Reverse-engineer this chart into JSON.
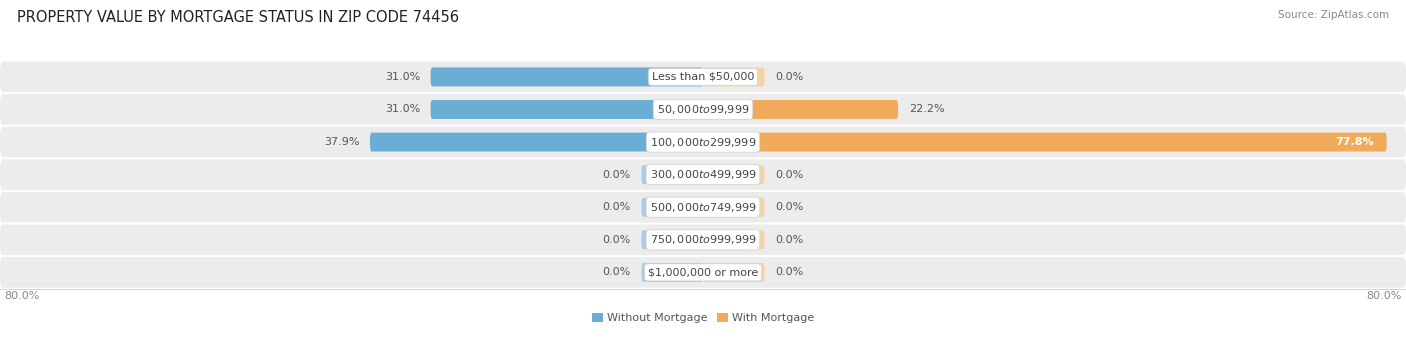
{
  "title": "PROPERTY VALUE BY MORTGAGE STATUS IN ZIP CODE 74456",
  "source": "Source: ZipAtlas.com",
  "categories": [
    "Less than $50,000",
    "$50,000 to $99,999",
    "$100,000 to $299,999",
    "$300,000 to $499,999",
    "$500,000 to $749,999",
    "$750,000 to $999,999",
    "$1,000,000 or more"
  ],
  "without_mortgage": [
    31.0,
    31.0,
    37.9,
    0.0,
    0.0,
    0.0,
    0.0
  ],
  "with_mortgage": [
    0.0,
    22.2,
    77.8,
    0.0,
    0.0,
    0.0,
    0.0
  ],
  "color_without": "#6aaed6",
  "color_with": "#f0aa5a",
  "color_without_zero": "#a8cce0",
  "color_with_zero": "#f5d3a8",
  "row_bg_color": "#ececec",
  "row_bg_alt": "#f5f5f5",
  "axis_left_label": "80.0%",
  "axis_right_label": "80.0%",
  "max_val": 80.0,
  "stub_size": 7.0,
  "legend_without": "Without Mortgage",
  "legend_with": "With Mortgage",
  "title_fontsize": 10.5,
  "source_fontsize": 7.5,
  "label_fontsize": 8,
  "category_fontsize": 8,
  "axis_fontsize": 8
}
